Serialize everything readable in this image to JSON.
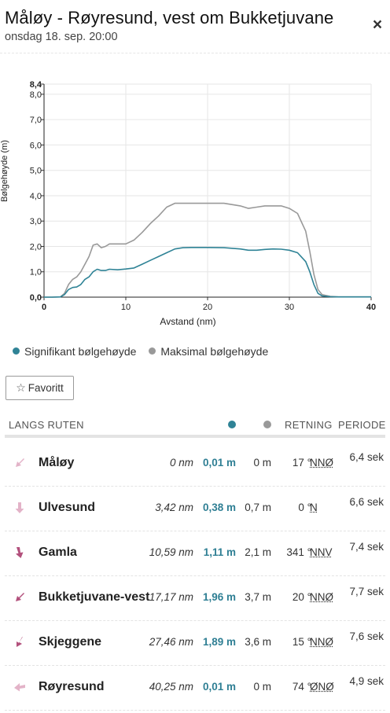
{
  "header": {
    "title": "Måløy - Røyresund, vest om Bukketjuvane",
    "subtitle": "onsdag 18. sep. 20:00",
    "close_label": "×"
  },
  "chart_data": {
    "type": "line",
    "xlabel": "Avstand (nm)",
    "ylabel": "Bølgehøyde (m)",
    "xlim": [
      0,
      40
    ],
    "ylim": [
      0,
      8.4
    ],
    "x_ticks": [
      "0",
      "10",
      "20",
      "30",
      "40"
    ],
    "y_ticks": [
      "0,0",
      "1,0",
      "2,0",
      "3,0",
      "4,0",
      "5,0",
      "6,0",
      "7,0",
      "8,0",
      "8,4"
    ],
    "grid": true,
    "legend_position": "bottom",
    "series": [
      {
        "name": "Signifikant bølgehøyde",
        "color": "#2f8396",
        "x": [
          0,
          1,
          2,
          2.5,
          3,
          3.5,
          4,
          4.5,
          5,
          5.5,
          6,
          6.5,
          7,
          7.5,
          8,
          9,
          10,
          11,
          12,
          13,
          14,
          15,
          16,
          17,
          18,
          20,
          22,
          24,
          25,
          26,
          27,
          28,
          29,
          30,
          31,
          32,
          32.5,
          33,
          33.5,
          34,
          35,
          36,
          38,
          40
        ],
        "values": [
          0,
          0,
          0.01,
          0.1,
          0.3,
          0.38,
          0.4,
          0.5,
          0.7,
          0.8,
          1.0,
          1.1,
          1.05,
          1.05,
          1.1,
          1.08,
          1.11,
          1.15,
          1.3,
          1.45,
          1.6,
          1.75,
          1.9,
          1.95,
          1.96,
          1.96,
          1.95,
          1.9,
          1.85,
          1.85,
          1.88,
          1.9,
          1.89,
          1.85,
          1.75,
          1.4,
          1.0,
          0.5,
          0.15,
          0.05,
          0.02,
          0.01,
          0.01,
          0.01
        ]
      },
      {
        "name": "Maksimal bølgehøyde",
        "color": "#999999",
        "x": [
          0,
          1,
          2,
          2.5,
          3,
          3.5,
          4,
          4.5,
          5,
          5.5,
          6,
          6.5,
          7,
          7.5,
          8,
          9,
          10,
          11,
          12,
          13,
          14,
          15,
          16,
          17,
          18,
          20,
          22,
          24,
          25,
          26,
          27,
          28,
          29,
          30,
          31,
          32,
          32.5,
          33,
          33.5,
          34,
          35,
          36,
          38,
          40
        ],
        "values": [
          0,
          0,
          0.01,
          0.15,
          0.5,
          0.7,
          0.8,
          1.0,
          1.3,
          1.6,
          2.05,
          2.1,
          1.95,
          2.0,
          2.1,
          2.1,
          2.1,
          2.25,
          2.55,
          2.9,
          3.2,
          3.55,
          3.7,
          3.7,
          3.7,
          3.7,
          3.7,
          3.6,
          3.5,
          3.55,
          3.6,
          3.6,
          3.6,
          3.5,
          3.3,
          2.6,
          1.8,
          0.9,
          0.3,
          0.1,
          0.03,
          0.01,
          0.01,
          0.01
        ]
      }
    ]
  },
  "legend": [
    {
      "label": "Signifikant bølgehøyde",
      "color": "#2f8396"
    },
    {
      "label": "Maksimal bølgehøyde",
      "color": "#999999"
    }
  ],
  "favorite_button": {
    "label": "Favoritt"
  },
  "table": {
    "headers": {
      "route": "LANGS RUTEN",
      "direction": "RETNING",
      "period": "PERIODE",
      "sig_color": "#2f8396",
      "max_color": "#999999"
    },
    "rows": [
      {
        "name": "Måløy",
        "distance": "0 nm",
        "significant": "0,01 m",
        "maximum": "0 m",
        "degrees": "17 °",
        "direction": "NNØ",
        "period": "6,4 sek",
        "arrow_color": "#e3b3c8",
        "arrow_icon": "arrow-down-left-icon"
      },
      {
        "name": "Ulvesund",
        "distance": "3,42 nm",
        "significant": "0,38 m",
        "maximum": "0,7 m",
        "degrees": "0 °",
        "direction": "N",
        "period": "6,6 sek",
        "arrow_color": "#e3b3c8",
        "arrow_icon": "arrow-down-icon"
      },
      {
        "name": "Gamla",
        "distance": "10,59 nm",
        "significant": "1,11 m",
        "maximum": "2,1 m",
        "degrees": "341 °",
        "direction": "NNV",
        "period": "7,4 sek",
        "arrow_color": "#b2507c",
        "arrow_icon": "arrow-down-right-icon"
      },
      {
        "name": "Bukketjuvane-vest",
        "distance": "17,17 nm",
        "significant": "1,96 m",
        "maximum": "3,7 m",
        "degrees": "20 °",
        "direction": "NNØ",
        "period": "7,7 sek",
        "arrow_color": "#b2507c",
        "arrow_icon": "arrow-down-left-icon"
      },
      {
        "name": "Skjeggene",
        "distance": "27,46 nm",
        "significant": "1,89 m",
        "maximum": "3,6 m",
        "degrees": "15 °",
        "direction": "NNØ",
        "period": "7,6 sek",
        "arrow_color": "#b2507c",
        "arrow_icon": "arrow-down-left-icon"
      },
      {
        "name": "Røyresund",
        "distance": "40,25 nm",
        "significant": "0,01 m",
        "maximum": "0 m",
        "degrees": "74 °",
        "direction": "ØNØ",
        "period": "4,9 sek",
        "arrow_color": "#e3b3c8",
        "arrow_icon": "arrow-left-icon"
      }
    ]
  }
}
